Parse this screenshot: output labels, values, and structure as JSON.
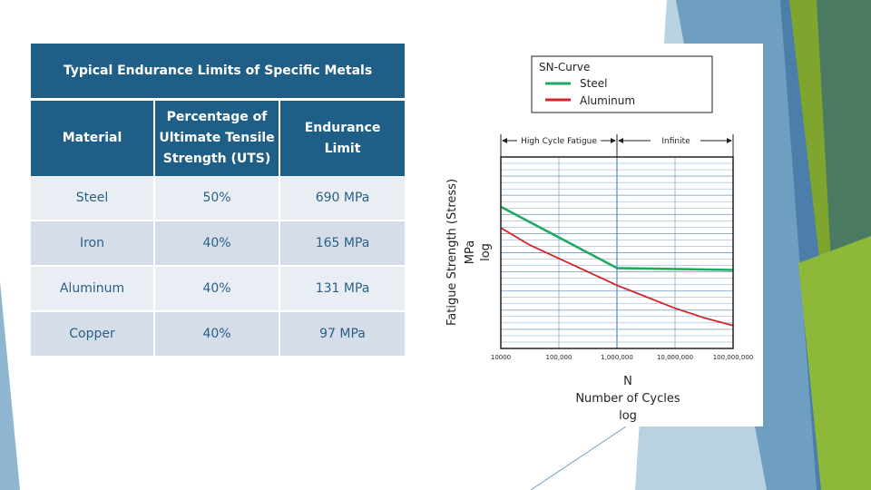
{
  "table": {
    "title": "Typical Endurance Limits of Specific Metals",
    "headers": [
      [
        "Material"
      ],
      [
        "Percentage of",
        "Ultimate Tensile",
        "Strength (UTS)"
      ],
      [
        "Endurance",
        "Limit"
      ]
    ],
    "rows": [
      {
        "material": "Steel",
        "percent": "50%",
        "limit": "690 MPa"
      },
      {
        "material": "Iron",
        "percent": "40%",
        "limit": "165 MPa"
      },
      {
        "material": "Aluminum",
        "percent": "40%",
        "limit": "131 MPa"
      },
      {
        "material": "Copper",
        "percent": "40%",
        "limit": "97 MPa"
      }
    ]
  },
  "chart_data": {
    "type": "line",
    "title": "SN-Curve",
    "xlabel": [
      "N",
      "Number of Cycles",
      "log"
    ],
    "ylabel": [
      "Fatigue Strength (Stress)",
      "MPa",
      "log"
    ],
    "x_scale": "log",
    "xlim": [
      10000,
      100000000
    ],
    "ylim": [
      0,
      1
    ],
    "grid": true,
    "legend_position": "top-right",
    "xtick_values": [
      10000,
      100000,
      1000000,
      10000000,
      100000000
    ],
    "xtick_labels": [
      "10000",
      "100,000",
      "1,000,000",
      "10,000,000",
      "100,000,000"
    ],
    "regions": [
      {
        "label": "High Cycle Fatigue",
        "from": 10000,
        "to": 1000000
      },
      {
        "label": "Infinite",
        "from": 1000000,
        "to": 100000000
      }
    ],
    "series": [
      {
        "name": "Steel",
        "color": "#1fa862",
        "x": [
          10000,
          1000000,
          100000000
        ],
        "y": [
          0.74,
          0.42,
          0.41
        ]
      },
      {
        "name": "Aluminum",
        "color": "#d4232a",
        "x": [
          10000,
          31623,
          100000,
          316228,
          1000000,
          3162278,
          10000000,
          31622777,
          100000000
        ],
        "y": [
          0.63,
          0.54,
          0.47,
          0.4,
          0.33,
          0.27,
          0.21,
          0.16,
          0.12
        ]
      }
    ]
  },
  "colors": {
    "table_header": "#1f5f87",
    "row_odd": "#e9eef4",
    "row_even": "#d4dde8",
    "grid_line": "#7ea6c9"
  }
}
